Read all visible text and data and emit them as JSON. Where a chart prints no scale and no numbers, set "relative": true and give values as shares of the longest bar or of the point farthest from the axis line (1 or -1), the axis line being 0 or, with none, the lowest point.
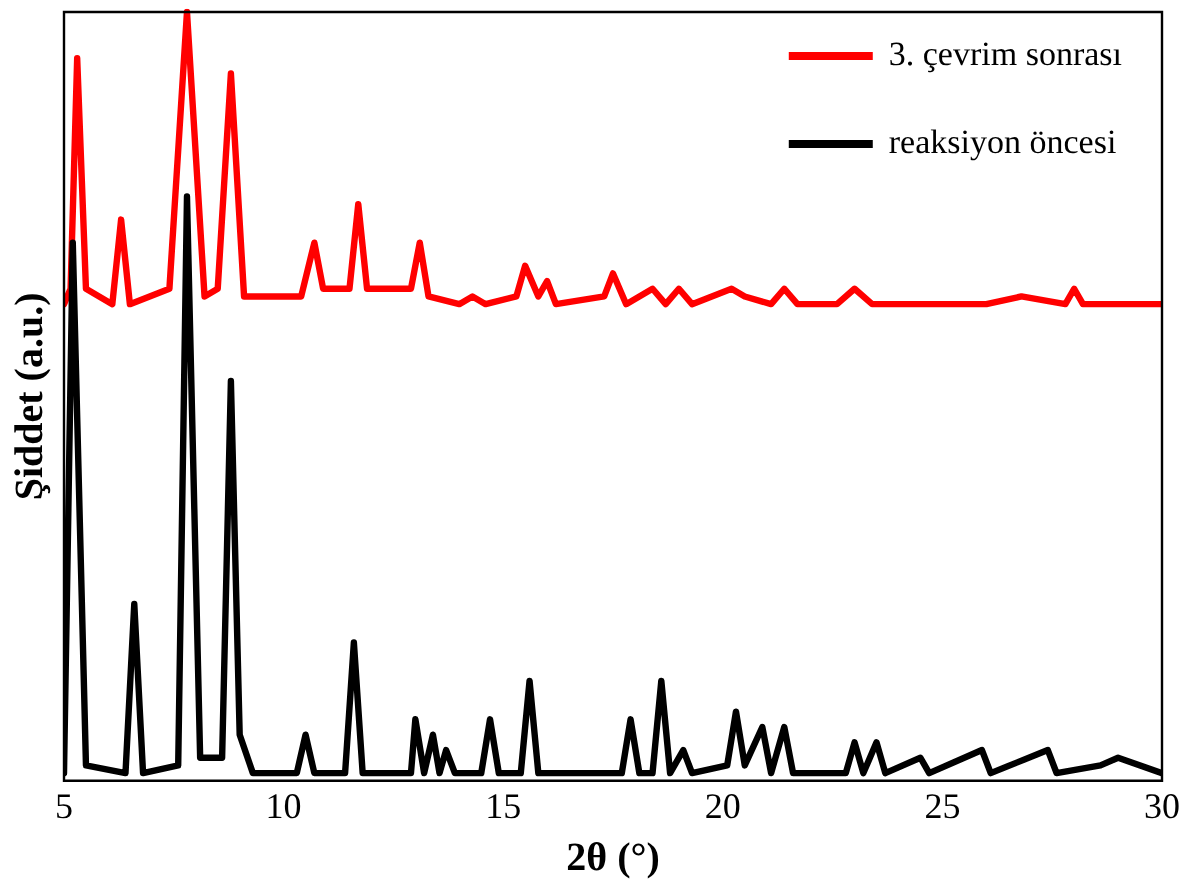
{
  "chart_data": {
    "type": "line",
    "xlabel": "2θ (°)",
    "ylabel": "Şiddet (a.u.)",
    "relative": true,
    "xlim": [
      5,
      30
    ],
    "xticks": [
      5,
      10,
      15,
      20,
      25,
      30
    ],
    "legend": "top right",
    "marker": "none",
    "line_style": "solid",
    "series": [
      {
        "name": "3. çevrim sonrası",
        "color": "#ff0000",
        "x": [
          5.0,
          5.15,
          5.3,
          5.5,
          6.1,
          6.3,
          6.5,
          7.4,
          7.8,
          8.2,
          8.5,
          8.8,
          9.1,
          10.4,
          10.7,
          10.9,
          11.5,
          11.7,
          11.9,
          12.9,
          13.1,
          13.3,
          14.0,
          14.3,
          14.6,
          15.3,
          15.5,
          15.8,
          16.0,
          16.2,
          17.3,
          17.5,
          17.8,
          18.4,
          18.7,
          19.0,
          19.3,
          20.2,
          20.5,
          21.1,
          21.4,
          21.7,
          22.6,
          23.0,
          23.4,
          26.0,
          26.8,
          27.8,
          28.0,
          28.2,
          30.0
        ],
        "values": [
          0.62,
          0.64,
          0.94,
          0.64,
          0.62,
          0.73,
          0.62,
          0.64,
          1.0,
          0.63,
          0.64,
          0.92,
          0.63,
          0.63,
          0.7,
          0.64,
          0.64,
          0.75,
          0.64,
          0.64,
          0.7,
          0.63,
          0.62,
          0.63,
          0.62,
          0.63,
          0.67,
          0.63,
          0.65,
          0.62,
          0.63,
          0.66,
          0.62,
          0.64,
          0.62,
          0.64,
          0.62,
          0.64,
          0.63,
          0.62,
          0.64,
          0.62,
          0.62,
          0.64,
          0.62,
          0.62,
          0.63,
          0.62,
          0.64,
          0.62,
          0.62
        ]
      },
      {
        "name": "reaksiyon öncesi",
        "color": "#000000",
        "x": [
          5.0,
          5.2,
          5.5,
          6.4,
          6.6,
          6.8,
          7.6,
          7.8,
          8.1,
          8.6,
          8.8,
          9.0,
          9.3,
          10.3,
          10.5,
          10.7,
          11.4,
          11.6,
          11.8,
          12.9,
          13.0,
          13.2,
          13.4,
          13.55,
          13.7,
          13.9,
          14.5,
          14.7,
          14.9,
          15.4,
          15.6,
          15.8,
          17.7,
          17.9,
          18.1,
          18.4,
          18.6,
          18.8,
          19.1,
          19.3,
          20.1,
          20.3,
          20.5,
          20.9,
          21.1,
          21.4,
          21.6,
          22.8,
          23.0,
          23.2,
          23.5,
          23.7,
          24.5,
          24.7,
          25.9,
          26.1,
          27.4,
          27.6,
          28.6,
          29.0,
          30.0
        ],
        "values": [
          0.01,
          0.7,
          0.02,
          0.01,
          0.23,
          0.01,
          0.02,
          0.76,
          0.03,
          0.03,
          0.52,
          0.06,
          0.01,
          0.01,
          0.06,
          0.01,
          0.01,
          0.18,
          0.01,
          0.01,
          0.08,
          0.01,
          0.06,
          0.01,
          0.04,
          0.01,
          0.01,
          0.08,
          0.01,
          0.01,
          0.13,
          0.01,
          0.01,
          0.08,
          0.01,
          0.01,
          0.13,
          0.01,
          0.04,
          0.01,
          0.02,
          0.09,
          0.02,
          0.07,
          0.01,
          0.07,
          0.01,
          0.01,
          0.05,
          0.01,
          0.05,
          0.01,
          0.03,
          0.01,
          0.04,
          0.01,
          0.04,
          0.01,
          0.02,
          0.03,
          0.01
        ]
      }
    ]
  }
}
